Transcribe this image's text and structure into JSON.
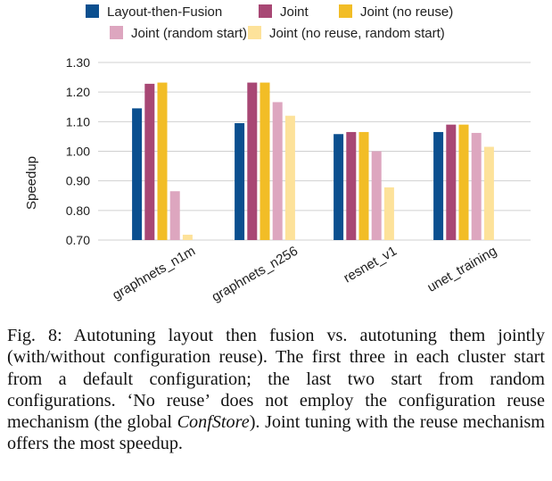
{
  "chart_data": {
    "type": "bar",
    "ylabel": "Speedup",
    "ylim": [
      0.7,
      1.3
    ],
    "yticks": [
      "0.70",
      "0.80",
      "0.90",
      "1.00",
      "1.10",
      "1.20",
      "1.30"
    ],
    "categories": [
      "graphnets_n1m",
      "graphnets_n256",
      "resnet_v1",
      "unet_training"
    ],
    "legend_position": "top",
    "grid": true,
    "series": [
      {
        "name": "Layout-then-Fusion",
        "color": "#0b4f8f",
        "values": [
          1.145,
          1.095,
          1.058,
          1.065
        ]
      },
      {
        "name": "Joint",
        "color": "#a84774",
        "values": [
          1.228,
          1.232,
          1.065,
          1.09
        ]
      },
      {
        "name": "Joint (no reuse)",
        "color": "#f2bd26",
        "values": [
          1.232,
          1.232,
          1.065,
          1.09
        ]
      },
      {
        "name": "Joint (random start)",
        "color": "#dda6bf",
        "values": [
          0.865,
          1.166,
          1.0,
          1.062
        ]
      },
      {
        "name": "Joint (no reuse, random start)",
        "color": "#fde29a",
        "values": [
          0.718,
          1.12,
          0.878,
          1.015
        ]
      }
    ]
  },
  "caption": {
    "prefix": "Fig. 8: Autotuning layout then fusion vs. autotuning them jointly (with/without configuration reuse). The first three in each cluster start from a default configuration; the last two start from random configurations. ‘No reuse’ does not employ the configuration reuse mechanism (the global ",
    "emphasis": "ConfStore",
    "suffix": "). Joint tuning with the reuse mechanism offers the most speedup."
  }
}
